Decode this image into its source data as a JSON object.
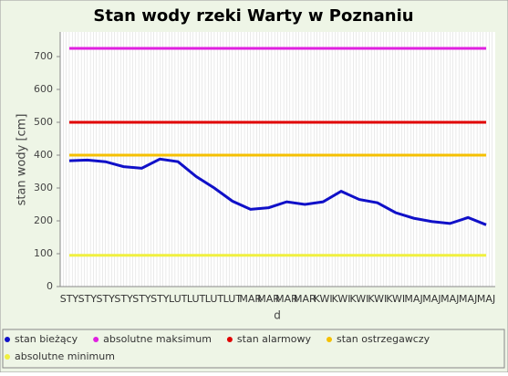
{
  "chart_data": {
    "type": "line",
    "title": "Stan wody rzeki Warty w Poznaniu",
    "xlabel": "d",
    "ylabel": "stan wody [cm]",
    "categories": [
      "STY",
      "STY",
      "STY",
      "STY",
      "STY",
      "STY",
      "LUT",
      "LUT",
      "LUT",
      "LUT",
      "MAR",
      "MAR",
      "MAR",
      "MAR",
      "KWI",
      "KWI",
      "KWI",
      "KWI",
      "KWI",
      "MAJ",
      "MAJ",
      "MAJ",
      "MAJ",
      "MAJ"
    ],
    "series": [
      {
        "name": "stan bieżący",
        "color": "#1010c8",
        "values": [
          383,
          385,
          380,
          365,
          360,
          388,
          380,
          335,
          300,
          260,
          235,
          240,
          258,
          250,
          258,
          290,
          265,
          255,
          225,
          208,
          198,
          192,
          210,
          188
        ]
      },
      {
        "name": "absolutne maksimum",
        "color": "#e020e0",
        "values": [
          725,
          725,
          725,
          725,
          725,
          725,
          725,
          725,
          725,
          725,
          725,
          725,
          725,
          725,
          725,
          725,
          725,
          725,
          725,
          725,
          725,
          725,
          725,
          725
        ]
      },
      {
        "name": "stan alarmowy",
        "color": "#e00000",
        "values": [
          500,
          500,
          500,
          500,
          500,
          500,
          500,
          500,
          500,
          500,
          500,
          500,
          500,
          500,
          500,
          500,
          500,
          500,
          500,
          500,
          500,
          500,
          500,
          500
        ]
      },
      {
        "name": "stan ostrzegawczy",
        "color": "#f5c000",
        "values": [
          400,
          400,
          400,
          400,
          400,
          400,
          400,
          400,
          400,
          400,
          400,
          400,
          400,
          400,
          400,
          400,
          400,
          400,
          400,
          400,
          400,
          400,
          400,
          400
        ]
      },
      {
        "name": "absolutne minimum",
        "color": "#f0f040",
        "values": [
          95,
          95,
          95,
          95,
          95,
          95,
          95,
          95,
          95,
          95,
          95,
          95,
          95,
          95,
          95,
          95,
          95,
          95,
          95,
          95,
          95,
          95,
          95,
          95
        ]
      }
    ],
    "ylim": [
      0,
      775
    ],
    "yticks": [
      0,
      100,
      200,
      300,
      400,
      500,
      600,
      700
    ],
    "grid": true,
    "legend": "bottom"
  }
}
